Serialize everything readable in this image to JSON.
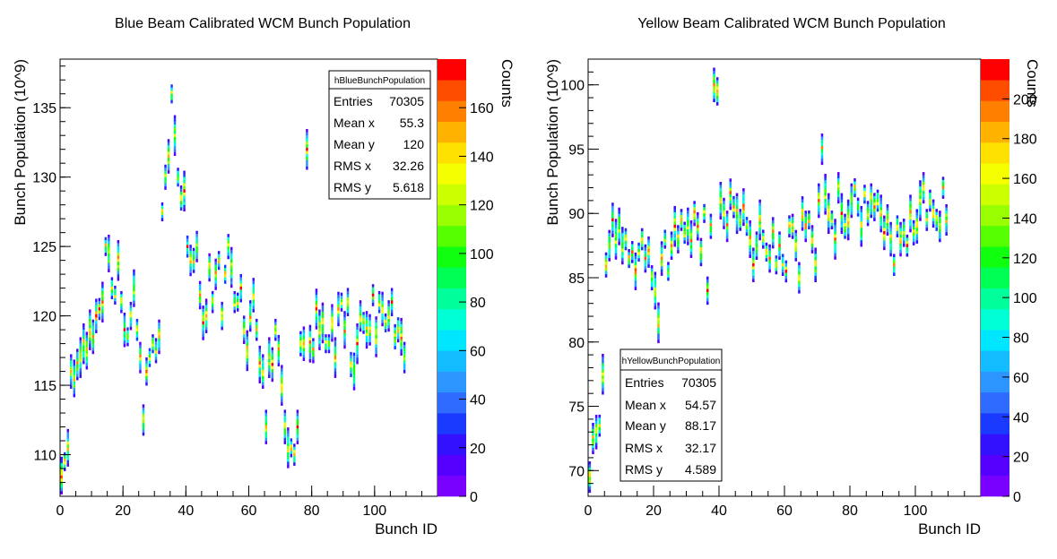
{
  "chart_data": [
    {
      "id": "blue",
      "type": "heatmap",
      "title": "Blue Beam Calibrated WCM Bunch Population",
      "xlabel": "Bunch ID",
      "ylabel": "Bunch Population (10^9)",
      "zlabel": "Counts",
      "xlim": [
        0,
        120
      ],
      "ylim": [
        107,
        138.5
      ],
      "zlim": [
        0,
        180
      ],
      "xticks": [
        0,
        20,
        40,
        60,
        80,
        100
      ],
      "yticks": [
        110,
        115,
        120,
        125,
        130,
        135
      ],
      "zticks": [
        0,
        20,
        40,
        60,
        80,
        100,
        120,
        140,
        160
      ],
      "stats": {
        "name": "hBlueBunchPopulation",
        "rows": [
          {
            "label": "Entries",
            "value": "70305"
          },
          {
            "label": "Mean x",
            "value": "55.3"
          },
          {
            "label": "Mean y",
            "value": "120"
          },
          {
            "label": "RMS x",
            "value": "32.26"
          },
          {
            "label": "RMS y",
            "value": "5.618"
          }
        ]
      },
      "bunch_centers": [
        [
          0,
          108.5
        ],
        [
          1,
          109.5
        ],
        [
          2,
          110.5
        ],
        [
          3,
          116
        ],
        [
          4,
          115.5
        ],
        [
          5,
          116.5
        ],
        [
          6,
          117
        ],
        [
          7,
          118
        ],
        [
          8,
          117.5
        ],
        [
          9,
          119
        ],
        [
          10,
          118.5
        ],
        [
          11,
          120
        ],
        [
          12,
          120.5
        ],
        [
          13,
          121
        ],
        [
          14,
          125
        ],
        [
          15,
          124.5
        ],
        [
          16,
          122
        ],
        [
          17,
          121.5
        ],
        [
          18,
          124
        ],
        [
          19,
          121
        ],
        [
          20,
          119
        ],
        [
          21,
          118.5
        ],
        [
          22,
          120
        ],
        [
          23,
          122
        ],
        [
          24,
          119
        ],
        [
          25,
          117
        ],
        [
          26,
          112.5
        ],
        [
          27,
          116
        ],
        [
          28,
          117
        ],
        [
          29,
          118
        ],
        [
          30,
          117.5
        ],
        [
          31,
          118.5
        ],
        [
          32,
          127.5
        ],
        [
          33,
          130
        ],
        [
          34,
          131.5
        ],
        [
          35,
          136
        ],
        [
          36,
          133
        ],
        [
          37,
          130
        ],
        [
          38,
          128.5
        ],
        [
          39,
          129
        ],
        [
          40,
          125
        ],
        [
          41,
          124
        ],
        [
          42,
          124
        ],
        [
          43,
          125
        ],
        [
          44,
          121.5
        ],
        [
          45,
          119.5
        ],
        [
          46,
          120
        ],
        [
          47,
          123.5
        ],
        [
          48,
          121
        ],
        [
          49,
          123
        ],
        [
          50,
          124
        ],
        [
          51,
          120
        ],
        [
          52,
          123
        ],
        [
          53,
          125
        ],
        [
          54,
          123.5
        ],
        [
          55,
          121
        ],
        [
          56,
          121
        ],
        [
          57,
          122
        ],
        [
          58,
          119
        ],
        [
          59,
          117.5
        ],
        [
          60,
          120
        ],
        [
          61,
          121.5
        ],
        [
          62,
          119
        ],
        [
          63,
          116.5
        ],
        [
          64,
          116
        ],
        [
          65,
          112
        ],
        [
          66,
          117
        ],
        [
          67,
          116.5
        ],
        [
          68,
          119
        ],
        [
          69,
          117.5
        ],
        [
          70,
          115
        ],
        [
          71,
          112
        ],
        [
          72,
          110.5
        ],
        [
          73,
          110.5
        ],
        [
          74,
          110
        ],
        [
          75,
          112
        ],
        [
          76,
          118
        ],
        [
          77,
          118
        ],
        [
          78,
          132
        ],
        [
          79,
          118
        ],
        [
          80,
          117.5
        ],
        [
          81,
          120.5
        ],
        [
          82,
          119
        ],
        [
          83,
          119.5
        ],
        [
          84,
          118
        ],
        [
          85,
          118
        ],
        [
          86,
          119.5
        ],
        [
          87,
          117
        ],
        [
          88,
          120.5
        ],
        [
          89,
          121
        ],
        [
          90,
          119
        ],
        [
          91,
          121
        ],
        [
          92,
          116.5
        ],
        [
          93,
          116
        ],
        [
          94,
          118
        ],
        [
          95,
          120
        ],
        [
          96,
          119.5
        ],
        [
          97,
          119
        ],
        [
          98,
          119
        ],
        [
          99,
          121.5
        ],
        [
          100,
          118.5
        ],
        [
          101,
          121
        ],
        [
          102,
          120.5
        ],
        [
          103,
          119.5
        ],
        [
          104,
          120
        ],
        [
          105,
          121
        ],
        [
          106,
          118.5
        ],
        [
          107,
          119
        ],
        [
          108,
          118.5
        ],
        [
          109,
          117
        ]
      ]
    },
    {
      "id": "yellow",
      "type": "heatmap",
      "title": "Yellow Beam Calibrated WCM Bunch Population",
      "xlabel": "Bunch ID",
      "ylabel": "Bunch Population (10^9)",
      "zlabel": "Counts",
      "xlim": [
        0,
        120
      ],
      "ylim": [
        68,
        102
      ],
      "zlim": [
        0,
        220
      ],
      "xticks": [
        0,
        20,
        40,
        60,
        80,
        100
      ],
      "yticks": [
        70,
        75,
        80,
        85,
        90,
        95,
        100
      ],
      "zticks": [
        0,
        20,
        40,
        60,
        80,
        100,
        120,
        140,
        160,
        180,
        200
      ],
      "stats": {
        "name": "hYellowBunchPopulation",
        "rows": [
          {
            "label": "Entries",
            "value": "70305"
          },
          {
            "label": "Mean x",
            "value": "54.57"
          },
          {
            "label": "Mean y",
            "value": "88.17"
          },
          {
            "label": "RMS x",
            "value": "32.17"
          },
          {
            "label": "RMS y",
            "value": "4.589"
          }
        ]
      },
      "bunch_centers": [
        [
          0,
          69.5
        ],
        [
          1,
          72.5
        ],
        [
          2,
          73
        ],
        [
          3,
          73.5
        ],
        [
          4,
          77.5
        ],
        [
          5,
          86
        ],
        [
          6,
          87.5
        ],
        [
          7,
          89.5
        ],
        [
          8,
          88
        ],
        [
          9,
          89
        ],
        [
          10,
          87.5
        ],
        [
          11,
          88
        ],
        [
          12,
          86.5
        ],
        [
          13,
          87
        ],
        [
          14,
          85.5
        ],
        [
          15,
          87
        ],
        [
          16,
          88
        ],
        [
          17,
          86.5
        ],
        [
          18,
          87
        ],
        [
          19,
          85
        ],
        [
          20,
          84
        ],
        [
          21,
          81.5
        ],
        [
          22,
          86.5
        ],
        [
          23,
          88
        ],
        [
          24,
          85.5
        ],
        [
          25,
          87.5
        ],
        [
          26,
          89
        ],
        [
          27,
          88
        ],
        [
          28,
          89.5
        ],
        [
          29,
          88.5
        ],
        [
          30,
          89
        ],
        [
          31,
          88
        ],
        [
          32,
          90
        ],
        [
          33,
          89
        ],
        [
          34,
          87
        ],
        [
          35,
          90
        ],
        [
          36,
          84
        ],
        [
          37,
          89
        ],
        [
          38,
          100
        ],
        [
          39,
          99.5
        ],
        [
          40,
          91
        ],
        [
          41,
          90
        ],
        [
          42,
          89
        ],
        [
          43,
          91.5
        ],
        [
          44,
          90.5
        ],
        [
          45,
          90
        ],
        [
          46,
          89.5
        ],
        [
          47,
          90.5
        ],
        [
          48,
          89
        ],
        [
          49,
          88
        ],
        [
          50,
          86
        ],
        [
          51,
          87.5
        ],
        [
          52,
          89.5
        ],
        [
          53,
          88
        ],
        [
          54,
          87
        ],
        [
          55,
          86.5
        ],
        [
          56,
          88.5
        ],
        [
          57,
          86
        ],
        [
          58,
          87.5
        ],
        [
          59,
          86
        ],
        [
          60,
          85.5
        ],
        [
          61,
          89
        ],
        [
          62,
          89
        ],
        [
          63,
          87.5
        ],
        [
          64,
          85
        ],
        [
          65,
          90
        ],
        [
          66,
          89
        ],
        [
          67,
          89.5
        ],
        [
          68,
          88
        ],
        [
          69,
          86
        ],
        [
          70,
          91
        ],
        [
          71,
          95
        ],
        [
          72,
          91.5
        ],
        [
          73,
          90
        ],
        [
          74,
          89.5
        ],
        [
          75,
          88
        ],
        [
          76,
          92
        ],
        [
          77,
          90
        ],
        [
          78,
          89
        ],
        [
          79,
          89.5
        ],
        [
          80,
          91
        ],
        [
          81,
          92
        ],
        [
          82,
          90.5
        ],
        [
          83,
          89
        ],
        [
          84,
          91.5
        ],
        [
          85,
          90
        ],
        [
          86,
          91
        ],
        [
          87,
          90.5
        ],
        [
          88,
          91
        ],
        [
          89,
          90
        ],
        [
          90,
          88.5
        ],
        [
          91,
          89.5
        ],
        [
          92,
          88
        ],
        [
          93,
          86
        ],
        [
          94,
          89
        ],
        [
          95,
          88
        ],
        [
          96,
          88.5
        ],
        [
          97,
          87.5
        ],
        [
          98,
          90
        ],
        [
          99,
          88.5
        ],
        [
          100,
          89
        ],
        [
          101,
          91
        ],
        [
          102,
          92
        ],
        [
          103,
          89.5
        ],
        [
          104,
          91
        ],
        [
          105,
          90
        ],
        [
          106,
          89.5
        ],
        [
          107,
          89
        ],
        [
          108,
          92
        ],
        [
          109,
          89.5
        ]
      ]
    }
  ]
}
